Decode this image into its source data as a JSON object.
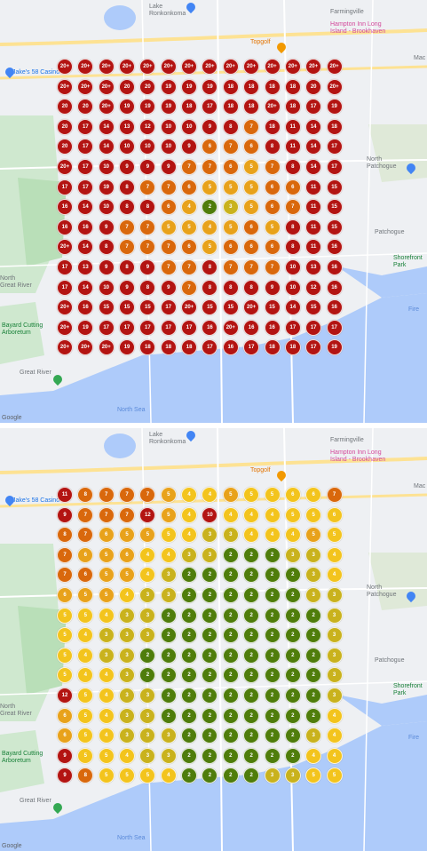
{
  "colors": {
    "r": "#b31412",
    "o": "#d9680c",
    "a": "#e8a21b",
    "y": "#f3c41d",
    "l": "#c9b21d",
    "g": "#4f7d0b",
    "water": "#aecbfa",
    "park": "#c8e6c9",
    "road": "#ffffff",
    "highway": "#fde293"
  },
  "maps": [
    {
      "labels": {
        "lake": "Lake\nRonkonkoma",
        "farmingville": "Farmingville",
        "hampton_inn": "Hampton Inn Long\nIsland - Brookhaven",
        "jakes": "Jake's 58 Casino",
        "topgolf": "Topgolf",
        "north_patchogue": "North\nPatchogue",
        "patchogue": "Patchogue",
        "shorefront": "Shorefront\nPark",
        "north_great_river": "North\nGreat River",
        "great_river": "Great River",
        "bayard": "Bayard Cutting\nArboretum",
        "mac": "Mac",
        "fire": "Fire",
        "north_sea": "North Sea",
        "google": "Google"
      },
      "rows": [
        [
          "20+",
          "20+",
          "20+",
          "20+",
          "20+",
          "20+",
          "20+",
          "20+",
          "20+",
          "20+",
          "20+",
          "20+",
          "20+",
          "20+"
        ],
        [
          "20+",
          "20+",
          "20+",
          "20",
          "20",
          "19",
          "19",
          "19",
          "18",
          "18",
          "18",
          "18",
          "20",
          "20+"
        ],
        [
          "20",
          "20",
          "20+",
          "19",
          "19",
          "19",
          "18",
          "17",
          "18",
          "18",
          "20+",
          "18",
          "17",
          "19"
        ],
        [
          "20",
          "17",
          "14",
          "13",
          "12",
          "10",
          "10",
          "9",
          "8",
          "7",
          "18",
          "11",
          "14",
          "18"
        ],
        [
          "20",
          "17",
          "14",
          "10",
          "10",
          "10",
          "9",
          "6",
          "7",
          "6",
          "8",
          "11",
          "14",
          "17"
        ],
        [
          "20+",
          "17",
          "10",
          "9",
          "9",
          "9",
          "7",
          "7",
          "6",
          "5",
          "7",
          "8",
          "14",
          "17"
        ],
        [
          "17",
          "17",
          "19",
          "8",
          "7",
          "7",
          "6",
          "5",
          "5",
          "5",
          "6",
          "6",
          "11",
          "15"
        ],
        [
          "16",
          "14",
          "10",
          "8",
          "8",
          "6",
          "4",
          "2",
          "3",
          "5",
          "6",
          "7",
          "11",
          "15"
        ],
        [
          "16",
          "16",
          "9",
          "7",
          "7",
          "5",
          "5",
          "4",
          "5",
          "6",
          "5",
          "8",
          "11",
          "15"
        ],
        [
          "20+",
          "14",
          "8",
          "7",
          "7",
          "7",
          "6",
          "5",
          "6",
          "6",
          "6",
          "8",
          "11",
          "16"
        ],
        [
          "17",
          "13",
          "9",
          "8",
          "9",
          "7",
          "7",
          "8",
          "7",
          "7",
          "7",
          "10",
          "13",
          "16"
        ],
        [
          "17",
          "14",
          "10",
          "9",
          "8",
          "9",
          "7",
          "8",
          "8",
          "8",
          "9",
          "10",
          "12",
          "16"
        ],
        [
          "20+",
          "16",
          "15",
          "15",
          "15",
          "17",
          "20+",
          "15",
          "15",
          "20+",
          "15",
          "14",
          "15",
          "16"
        ],
        [
          "20+",
          "19",
          "17",
          "17",
          "17",
          "17",
          "17",
          "16",
          "20+",
          "16",
          "16",
          "17",
          "17",
          "17"
        ],
        [
          "20+",
          "20+",
          "20+",
          "19",
          "18",
          "18",
          "18",
          "17",
          "16",
          "17",
          "18",
          "18",
          "17",
          "19"
        ]
      ],
      "codes": [
        [
          "r",
          "r",
          "r",
          "r",
          "r",
          "r",
          "r",
          "r",
          "r",
          "r",
          "r",
          "r",
          "r",
          "r"
        ],
        [
          "r",
          "r",
          "r",
          "r",
          "r",
          "r",
          "r",
          "r",
          "r",
          "r",
          "r",
          "r",
          "r",
          "r"
        ],
        [
          "r",
          "r",
          "r",
          "r",
          "r",
          "r",
          "r",
          "r",
          "r",
          "r",
          "r",
          "r",
          "r",
          "r"
        ],
        [
          "r",
          "r",
          "r",
          "r",
          "r",
          "r",
          "r",
          "r",
          "r",
          "o",
          "r",
          "r",
          "r",
          "r"
        ],
        [
          "r",
          "r",
          "r",
          "r",
          "r",
          "r",
          "r",
          "o",
          "o",
          "o",
          "r",
          "r",
          "r",
          "r"
        ],
        [
          "r",
          "r",
          "r",
          "r",
          "r",
          "r",
          "o",
          "o",
          "o",
          "a",
          "o",
          "r",
          "r",
          "r"
        ],
        [
          "r",
          "r",
          "r",
          "r",
          "o",
          "o",
          "o",
          "a",
          "a",
          "a",
          "o",
          "o",
          "r",
          "r"
        ],
        [
          "r",
          "r",
          "r",
          "r",
          "r",
          "o",
          "a",
          "g",
          "l",
          "a",
          "o",
          "o",
          "r",
          "r"
        ],
        [
          "r",
          "r",
          "r",
          "o",
          "o",
          "a",
          "a",
          "a",
          "a",
          "o",
          "a",
          "r",
          "r",
          "r"
        ],
        [
          "r",
          "r",
          "r",
          "o",
          "o",
          "o",
          "o",
          "a",
          "o",
          "o",
          "o",
          "r",
          "r",
          "r"
        ],
        [
          "r",
          "r",
          "r",
          "r",
          "r",
          "o",
          "o",
          "r",
          "o",
          "o",
          "o",
          "r",
          "r",
          "r"
        ],
        [
          "r",
          "r",
          "r",
          "r",
          "r",
          "r",
          "o",
          "r",
          "r",
          "r",
          "r",
          "r",
          "r",
          "r"
        ],
        [
          "r",
          "r",
          "r",
          "r",
          "r",
          "r",
          "r",
          "r",
          "r",
          "r",
          "r",
          "r",
          "r",
          "r"
        ],
        [
          "r",
          "r",
          "r",
          "r",
          "r",
          "r",
          "r",
          "r",
          "r",
          "r",
          "r",
          "r",
          "r",
          "r"
        ],
        [
          "r",
          "r",
          "r",
          "r",
          "r",
          "r",
          "r",
          "r",
          "r",
          "r",
          "r",
          "r",
          "r",
          "r"
        ]
      ]
    },
    {
      "labels": {
        "lake": "Lake\nRonkonkoma",
        "farmingville": "Farmingville",
        "hampton_inn": "Hampton Inn Long\nIsland - Brookhaven",
        "jakes": "Jake's 58 Casino",
        "topgolf": "Topgolf",
        "north_patchogue": "North\nPatchogue",
        "patchogue": "Patchogue",
        "shorefront": "Shorefront\nPark",
        "north_great_river": "North\nGreat River",
        "great_river": "Great River",
        "bayard": "Bayard Cutting\nArboretum",
        "mac": "Mac",
        "fire": "Fire",
        "north_sea": "North Sea",
        "google": "Google"
      },
      "rows": [
        [
          "11",
          "8",
          "7",
          "7",
          "7",
          "5",
          "4",
          "4",
          "5",
          "5",
          "5",
          "6",
          "6",
          "7"
        ],
        [
          "9",
          "7",
          "7",
          "7",
          "12",
          "5",
          "4",
          "10",
          "4",
          "4",
          "4",
          "5",
          "5",
          "6"
        ],
        [
          "8",
          "7",
          "6",
          "5",
          "5",
          "5",
          "4",
          "3",
          "3",
          "4",
          "4",
          "4",
          "5",
          "5"
        ],
        [
          "7",
          "6",
          "5",
          "6",
          "4",
          "4",
          "3",
          "3",
          "2",
          "2",
          "2",
          "3",
          "3",
          "4"
        ],
        [
          "7",
          "6",
          "5",
          "5",
          "4",
          "3",
          "2",
          "2",
          "2",
          "2",
          "2",
          "2",
          "3",
          "4"
        ],
        [
          "6",
          "5",
          "5",
          "4",
          "3",
          "3",
          "2",
          "2",
          "2",
          "2",
          "2",
          "2",
          "3",
          "3"
        ],
        [
          "5",
          "5",
          "4",
          "3",
          "3",
          "2",
          "2",
          "2",
          "2",
          "2",
          "2",
          "2",
          "2",
          "3"
        ],
        [
          "5",
          "4",
          "3",
          "3",
          "3",
          "2",
          "2",
          "2",
          "2",
          "2",
          "2",
          "2",
          "2",
          "3"
        ],
        [
          "5",
          "4",
          "3",
          "3",
          "2",
          "2",
          "2",
          "2",
          "2",
          "2",
          "2",
          "2",
          "2",
          "3"
        ],
        [
          "5",
          "4",
          "4",
          "3",
          "2",
          "2",
          "2",
          "2",
          "2",
          "2",
          "2",
          "2",
          "2",
          "3"
        ],
        [
          "12",
          "5",
          "4",
          "3",
          "3",
          "2",
          "2",
          "2",
          "2",
          "2",
          "2",
          "2",
          "2",
          "3"
        ],
        [
          "6",
          "5",
          "4",
          "3",
          "3",
          "2",
          "2",
          "2",
          "2",
          "2",
          "2",
          "2",
          "2",
          "4"
        ],
        [
          "6",
          "5",
          "4",
          "3",
          "3",
          "3",
          "2",
          "2",
          "2",
          "2",
          "2",
          "2",
          "3",
          "4"
        ],
        [
          "9",
          "5",
          "5",
          "4",
          "3",
          "3",
          "2",
          "2",
          "2",
          "2",
          "2",
          "2",
          "4",
          "4"
        ],
        [
          "9",
          "8",
          "5",
          "5",
          "5",
          "4",
          "2",
          "2",
          "2",
          "2",
          "3",
          "3",
          "5",
          "5"
        ]
      ],
      "codes": [
        [
          "r",
          "o",
          "o",
          "o",
          "o",
          "a",
          "y",
          "y",
          "a",
          "y",
          "y",
          "y",
          "y",
          "o"
        ],
        [
          "r",
          "o",
          "o",
          "o",
          "r",
          "a",
          "y",
          "r",
          "y",
          "y",
          "y",
          "y",
          "y",
          "y"
        ],
        [
          "o",
          "o",
          "a",
          "a",
          "a",
          "y",
          "y",
          "l",
          "l",
          "y",
          "y",
          "y",
          "a",
          "y"
        ],
        [
          "o",
          "a",
          "a",
          "a",
          "y",
          "y",
          "l",
          "l",
          "g",
          "g",
          "g",
          "l",
          "l",
          "y"
        ],
        [
          "o",
          "o",
          "a",
          "a",
          "y",
          "l",
          "g",
          "g",
          "g",
          "g",
          "g",
          "g",
          "l",
          "y"
        ],
        [
          "a",
          "a",
          "a",
          "y",
          "l",
          "l",
          "g",
          "g",
          "g",
          "g",
          "g",
          "g",
          "l",
          "l"
        ],
        [
          "y",
          "y",
          "y",
          "l",
          "l",
          "g",
          "g",
          "g",
          "g",
          "g",
          "g",
          "g",
          "g",
          "l"
        ],
        [
          "y",
          "y",
          "l",
          "l",
          "l",
          "g",
          "g",
          "g",
          "g",
          "g",
          "g",
          "g",
          "g",
          "l"
        ],
        [
          "y",
          "y",
          "l",
          "l",
          "g",
          "g",
          "g",
          "g",
          "g",
          "g",
          "g",
          "g",
          "g",
          "l"
        ],
        [
          "y",
          "y",
          "y",
          "l",
          "g",
          "g",
          "g",
          "g",
          "g",
          "g",
          "g",
          "g",
          "g",
          "l"
        ],
        [
          "r",
          "y",
          "y",
          "l",
          "l",
          "g",
          "g",
          "g",
          "g",
          "g",
          "g",
          "g",
          "g",
          "l"
        ],
        [
          "a",
          "y",
          "y",
          "l",
          "l",
          "g",
          "g",
          "g",
          "g",
          "g",
          "g",
          "g",
          "g",
          "y"
        ],
        [
          "a",
          "y",
          "y",
          "l",
          "l",
          "l",
          "g",
          "g",
          "g",
          "g",
          "g",
          "g",
          "l",
          "y"
        ],
        [
          "r",
          "y",
          "y",
          "y",
          "l",
          "l",
          "g",
          "g",
          "g",
          "g",
          "g",
          "g",
          "y",
          "y"
        ],
        [
          "r",
          "o",
          "y",
          "y",
          "y",
          "y",
          "g",
          "g",
          "g",
          "g",
          "l",
          "l",
          "y",
          "y"
        ]
      ]
    }
  ]
}
